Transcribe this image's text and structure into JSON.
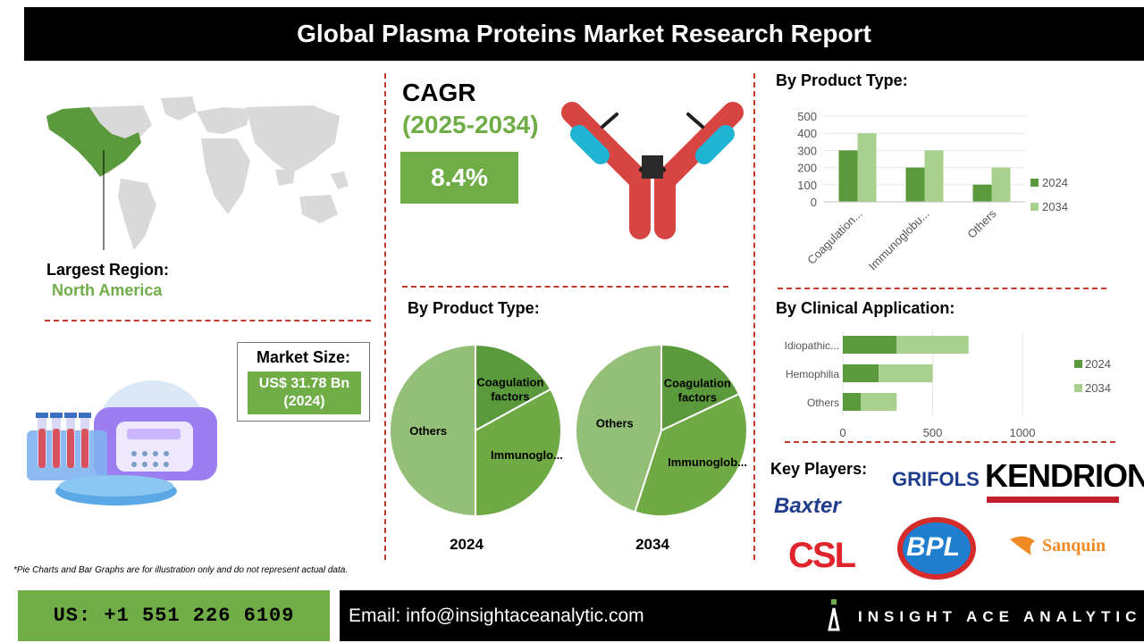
{
  "header": {
    "title": "Global Plasma Proteins Market Research Report"
  },
  "region": {
    "label": "Largest Region:",
    "value": "North America"
  },
  "cagr": {
    "title": "CAGR",
    "years": "(2025-2034)",
    "value": "8.4%"
  },
  "market_size": {
    "label": "Market Size:",
    "value": "US$ 31.78 Bn",
    "year": "(2024)"
  },
  "pie_section": {
    "title": "By Product Type:"
  },
  "bar_section_1": {
    "title": "By Product Type:"
  },
  "bar_section_2": {
    "title": "By  Clinical Application:"
  },
  "key_players": {
    "title": "Key Players:",
    "logos": [
      "GRIFOLS",
      "KENDRION",
      "Baxter",
      "CSL",
      "BPL",
      "Sanquin"
    ]
  },
  "footnote": "*Pie Charts and Bar Graphs are for illustration only and do not represent actual data.",
  "footer": {
    "phone": "US: +1 551 226 6109",
    "email": "Email: info@insightaceanalytic.com",
    "brand": "INSIGHT ACE ANALYTIC"
  },
  "colors": {
    "dark_green": "#5b9a3c",
    "light_green": "#a9d18e",
    "accent_green": "#70ad47",
    "divider_red": "#c0392b",
    "antibody_red": "#d64541",
    "antibody_cyan": "#1fb3d4"
  },
  "icons": [
    "world-map-icon",
    "antibody-icon",
    "lab-equipment-icon"
  ],
  "chart_data": [
    {
      "type": "pie",
      "id": "pie_2024",
      "year_label": "2024",
      "slices": [
        {
          "label": "Coagulation factors",
          "value": 17
        },
        {
          "label": "Immunoglo...",
          "value": 33
        },
        {
          "label": "Others",
          "value": 50
        }
      ]
    },
    {
      "type": "pie",
      "id": "pie_2034",
      "year_label": "2034",
      "slices": [
        {
          "label": "Coagulation factors",
          "value": 18
        },
        {
          "label": "Immunoglob...",
          "value": 37
        },
        {
          "label": "Others",
          "value": 45
        }
      ]
    },
    {
      "type": "bar",
      "id": "bar_product",
      "categories": [
        "Coagulation...",
        "Immunoglobu...",
        "Others"
      ],
      "series": [
        {
          "name": "2024",
          "values": [
            300,
            200,
            100
          ]
        },
        {
          "name": "2034",
          "values": [
            400,
            300,
            200
          ]
        }
      ],
      "ylim": [
        0,
        500
      ],
      "yticks": [
        0,
        100,
        200,
        300,
        400,
        500
      ],
      "legend": "right"
    },
    {
      "type": "bar",
      "orientation": "horizontal",
      "stacked": true,
      "id": "bar_clinical",
      "categories": [
        "Idiopathic...",
        "Hemophilia",
        "Others"
      ],
      "series": [
        {
          "name": "2024",
          "values": [
            300,
            200,
            100
          ]
        },
        {
          "name": "2034",
          "values": [
            400,
            300,
            200
          ]
        }
      ],
      "xlim": [
        0,
        1000
      ],
      "xticks": [
        0,
        500,
        1000
      ],
      "legend": "right"
    }
  ]
}
